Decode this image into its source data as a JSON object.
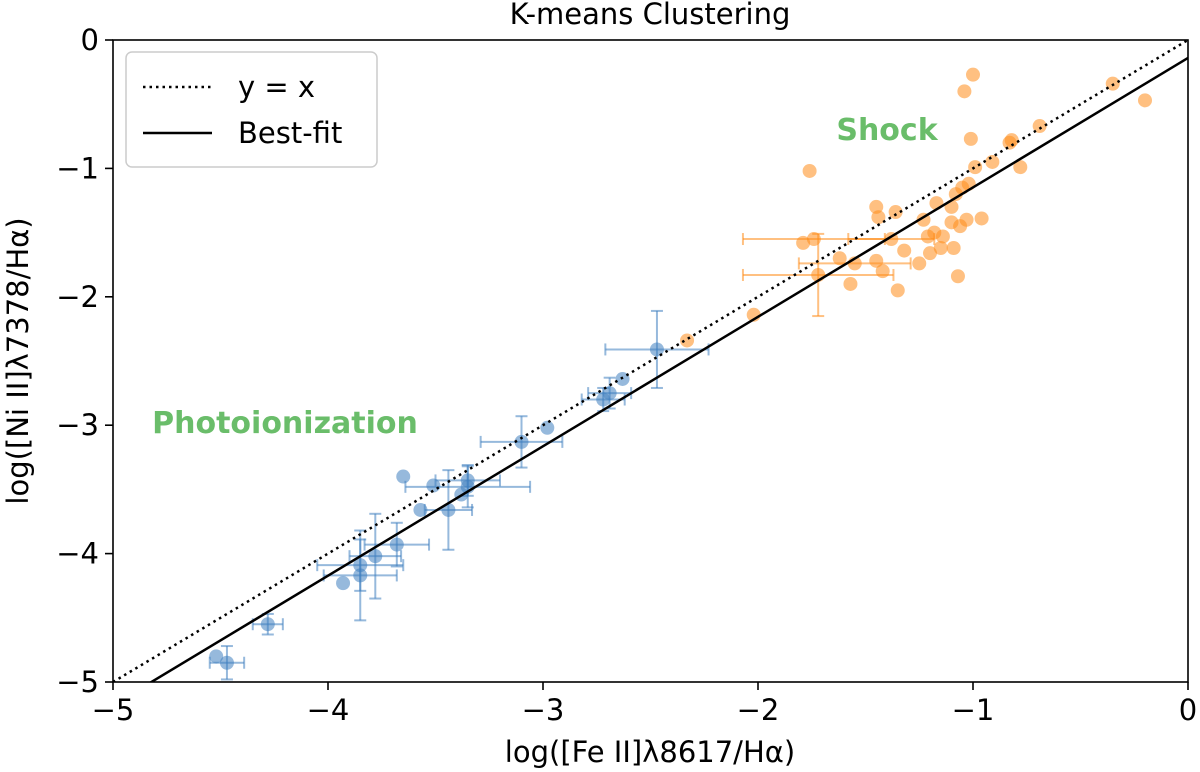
{
  "chart_data": {
    "type": "scatter",
    "title": "K-means Clustering",
    "xlabel": "log([Fe II]λ8617/Hα)",
    "ylabel": "log([Ni II]λ7378/Hα)",
    "xlim": [
      -5,
      0
    ],
    "ylim": [
      -5,
      0
    ],
    "xticks": [
      -5,
      -4,
      -3,
      -2,
      -1,
      0
    ],
    "yticks": [
      -5,
      -4,
      -3,
      -2,
      -1,
      0
    ],
    "xtick_labels": [
      "−5",
      "−4",
      "−3",
      "−2",
      "−1",
      "0"
    ],
    "ytick_labels": [
      "−5",
      "−4",
      "−3",
      "−2",
      "−1",
      "0"
    ],
    "legend": {
      "placement": "top-left",
      "entries": [
        {
          "label": "y = x",
          "style": "dotted"
        },
        {
          "label": "Best-fit",
          "style": "solid"
        }
      ]
    },
    "lines": [
      {
        "name": "y = x",
        "style": "dotted",
        "color": "#000000",
        "x": [
          -5,
          0
        ],
        "y": [
          -5,
          0
        ]
      },
      {
        "name": "Best-fit",
        "style": "solid",
        "color": "#000000",
        "x": [
          -5,
          0
        ],
        "y": [
          -5.18,
          -0.14
        ]
      }
    ],
    "annotations": [
      {
        "text": "Shock",
        "x": -1.4,
        "y": -0.78,
        "color": "#6abd6a"
      },
      {
        "text": "Photoionization",
        "x": -4.2,
        "y": -3.06,
        "color": "#6abd6a"
      }
    ],
    "series": [
      {
        "name": "Photoionization",
        "color": "#3f7fbf",
        "points": [
          {
            "x": -4.52,
            "y": -4.8
          },
          {
            "x": -4.47,
            "y": -4.85,
            "xerr": 0.08,
            "yerr": 0.13
          },
          {
            "x": -4.28,
            "y": -4.55,
            "xerr": 0.07,
            "yerr": 0.08
          },
          {
            "x": -3.93,
            "y": -4.23
          },
          {
            "x": -3.85,
            "y": -4.17,
            "xerr": 0.17,
            "yerr": 0.35
          },
          {
            "x": -3.85,
            "y": -4.09,
            "xerr": 0.2,
            "yerr": 0.2
          },
          {
            "x": -3.78,
            "y": -4.02,
            "xerr": 0.12,
            "yerr": 0.33
          },
          {
            "x": -3.68,
            "y": -3.93,
            "xerr": 0.15,
            "yerr": 0.17
          },
          {
            "x": -3.65,
            "y": -3.4
          },
          {
            "x": -3.57,
            "y": -3.66
          },
          {
            "x": -3.51,
            "y": -3.47
          },
          {
            "x": -3.44,
            "y": -3.66,
            "xerr": 0.11,
            "yerr": 0.31
          },
          {
            "x": -3.38,
            "y": -3.54
          },
          {
            "x": -3.35,
            "y": -3.48,
            "xerr": 0.29,
            "yerr": 0.16
          },
          {
            "x": -3.35,
            "y": -3.43,
            "xerr": 0.15,
            "yerr": 0.12
          },
          {
            "x": -3.1,
            "y": -3.13,
            "xerr": 0.19,
            "yerr": 0.2
          },
          {
            "x": -2.98,
            "y": -3.02
          },
          {
            "x": -2.72,
            "y": -2.8,
            "xerr": 0.1,
            "yerr": 0.09
          },
          {
            "x": -2.69,
            "y": -2.75,
            "xerr": 0.1,
            "yerr": 0.12
          },
          {
            "x": -2.63,
            "y": -2.64
          },
          {
            "x": -2.47,
            "y": -2.41,
            "xerr": 0.24,
            "yerr": 0.3
          }
        ]
      },
      {
        "name": "Shock",
        "color": "#ff8c1a",
        "points": [
          {
            "x": -2.33,
            "y": -2.34
          },
          {
            "x": -2.02,
            "y": -2.14
          },
          {
            "x": -1.79,
            "y": -1.58
          },
          {
            "x": -1.76,
            "y": -1.02
          },
          {
            "x": -1.74,
            "y": -1.55,
            "xerr": 0.33
          },
          {
            "x": -1.72,
            "y": -1.83,
            "xerr": 0.35,
            "yerr": 0.32
          },
          {
            "x": -1.62,
            "y": -1.7
          },
          {
            "x": -1.57,
            "y": -1.9
          },
          {
            "x": -1.55,
            "y": -1.74,
            "xerr": 0.26
          },
          {
            "x": -1.45,
            "y": -1.72
          },
          {
            "x": -1.45,
            "y": -1.3
          },
          {
            "x": -1.44,
            "y": -1.38
          },
          {
            "x": -1.42,
            "y": -1.8
          },
          {
            "x": -1.38,
            "y": -1.55,
            "xerr": 0.2
          },
          {
            "x": -1.36,
            "y": -1.34
          },
          {
            "x": -1.35,
            "y": -1.95
          },
          {
            "x": -1.32,
            "y": -1.64
          },
          {
            "x": -1.25,
            "y": -1.74
          },
          {
            "x": -1.23,
            "y": -1.4
          },
          {
            "x": -1.21,
            "y": -1.53
          },
          {
            "x": -1.2,
            "y": -1.66
          },
          {
            "x": -1.18,
            "y": -1.5
          },
          {
            "x": -1.17,
            "y": -1.27
          },
          {
            "x": -1.15,
            "y": -1.62
          },
          {
            "x": -1.14,
            "y": -1.53
          },
          {
            "x": -1.1,
            "y": -1.42
          },
          {
            "x": -1.1,
            "y": -1.3
          },
          {
            "x": -1.09,
            "y": -1.62
          },
          {
            "x": -1.08,
            "y": -1.2
          },
          {
            "x": -1.07,
            "y": -1.84
          },
          {
            "x": -1.06,
            "y": -1.45
          },
          {
            "x": -1.05,
            "y": -1.15
          },
          {
            "x": -1.04,
            "y": -0.4
          },
          {
            "x": -1.03,
            "y": -1.4
          },
          {
            "x": -1.02,
            "y": -1.12
          },
          {
            "x": -1.01,
            "y": -0.77
          },
          {
            "x": -1.0,
            "y": -0.27
          },
          {
            "x": -0.99,
            "y": -0.99
          },
          {
            "x": -0.96,
            "y": -1.39
          },
          {
            "x": -0.91,
            "y": -0.95
          },
          {
            "x": -0.83,
            "y": -0.8
          },
          {
            "x": -0.82,
            "y": -0.78
          },
          {
            "x": -0.78,
            "y": -0.99
          },
          {
            "x": -0.69,
            "y": -0.67
          },
          {
            "x": -0.35,
            "y": -0.34
          },
          {
            "x": -0.2,
            "y": -0.47
          }
        ]
      }
    ]
  }
}
